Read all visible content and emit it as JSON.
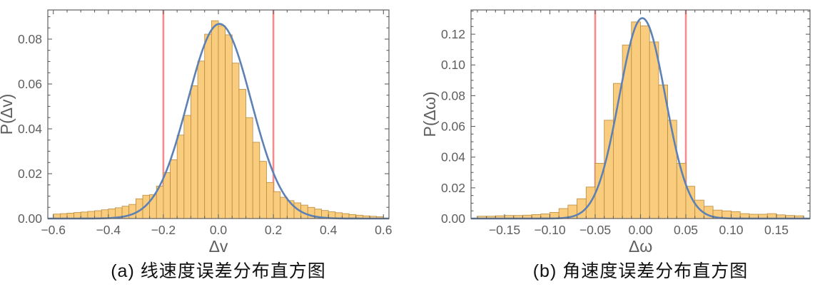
{
  "page": {
    "background": "#ffffff"
  },
  "colors": {
    "bar_fill": "#FACD7E",
    "bar_edge": "#B98A3E",
    "fit_curve": "#5E81B5",
    "ref_line": "#F58C8C",
    "frame": "#606060",
    "tick_label": "#5E5E5E",
    "axis_label": "#5E5E5E",
    "caption": "#111111"
  },
  "chart_data": [
    {
      "type": "bar",
      "subtype": "histogram",
      "caption": "(a) 线速度误差分布直方图",
      "xlabel": "Δv",
      "ylabel": "P(Δv)",
      "xlim": [
        -0.62,
        0.62
      ],
      "ylim": [
        0,
        0.093
      ],
      "grid": "off",
      "legend": "none",
      "x_major_ticks": [
        -0.6,
        -0.4,
        -0.2,
        0.0,
        0.2,
        0.4,
        0.6
      ],
      "x_tick_labels": [
        "−0.6",
        "−0.4",
        "−0.2",
        "0.0",
        "0.2",
        "0.4",
        "0.6"
      ],
      "x_minor_step": 0.05,
      "y_major_ticks": [
        0,
        0.02,
        0.04,
        0.06,
        0.08
      ],
      "y_tick_labels": [
        "0.00",
        "0.02",
        "0.04",
        "0.06",
        "0.08"
      ],
      "y_minor_step": 0.005,
      "bins": {
        "start": -0.6,
        "width": 0.025,
        "count": 48
      },
      "bar_heights": [
        0.002,
        0.0022,
        0.0024,
        0.0027,
        0.0029,
        0.0032,
        0.0035,
        0.0039,
        0.0043,
        0.0048,
        0.0055,
        0.0063,
        0.0088,
        0.0104,
        0.0107,
        0.0145,
        0.0205,
        0.0262,
        0.0372,
        0.046,
        0.0592,
        0.0702,
        0.0822,
        0.0882,
        0.086,
        0.0819,
        0.0693,
        0.0576,
        0.045,
        0.034,
        0.0255,
        0.0161,
        0.012,
        0.0095,
        0.008,
        0.007,
        0.006,
        0.005,
        0.0042,
        0.0036,
        0.003,
        0.0026,
        0.0022,
        0.0018,
        0.0015,
        0.0012,
        0.001,
        0.0008
      ],
      "fit_curve": {
        "shape": "gaussian",
        "amplitude": 0.0868,
        "mean": 0.004,
        "sigma": 0.115
      },
      "ref_lines_x": [
        -0.2,
        0.2
      ]
    },
    {
      "type": "bar",
      "subtype": "histogram",
      "caption": "(b) 角速度误差分布直方图",
      "xlabel": "Δω",
      "ylabel": "P(Δω)",
      "xlim": [
        -0.187,
        0.187
      ],
      "ylim": [
        0,
        0.1358
      ],
      "grid": "off",
      "legend": "none",
      "x_major_ticks": [
        -0.15,
        -0.1,
        -0.05,
        0.0,
        0.05,
        0.1,
        0.15
      ],
      "x_tick_labels": [
        "−0.15",
        "−0.10",
        "−0.05",
        "0.00",
        "0.05",
        "0.10",
        "0.15"
      ],
      "x_minor_step": 0.01,
      "y_major_ticks": [
        0,
        0.02,
        0.04,
        0.06,
        0.08,
        0.1,
        0.12
      ],
      "y_tick_labels": [
        "0.00",
        "0.02",
        "0.04",
        "0.06",
        "0.08",
        "0.10",
        "0.12"
      ],
      "y_minor_step": 0.005,
      "bins": {
        "start": -0.18,
        "width": 0.01,
        "count": 36
      },
      "bar_heights": [
        0.0015,
        0.0015,
        0.0018,
        0.002,
        0.002,
        0.0022,
        0.0026,
        0.003,
        0.004,
        0.0065,
        0.0088,
        0.0129,
        0.0205,
        0.036,
        0.064,
        0.088,
        0.113,
        0.128,
        0.1255,
        0.115,
        0.087,
        0.064,
        0.036,
        0.021,
        0.012,
        0.008,
        0.0055,
        0.005,
        0.0045,
        0.0032,
        0.0028,
        0.0028,
        0.0032,
        0.0024,
        0.002,
        0.0018
      ],
      "fit_curve": {
        "shape": "gaussian",
        "amplitude": 0.1305,
        "mean": 0.002,
        "sigma": 0.0255
      },
      "ref_lines_x": [
        -0.05,
        0.05
      ]
    }
  ]
}
